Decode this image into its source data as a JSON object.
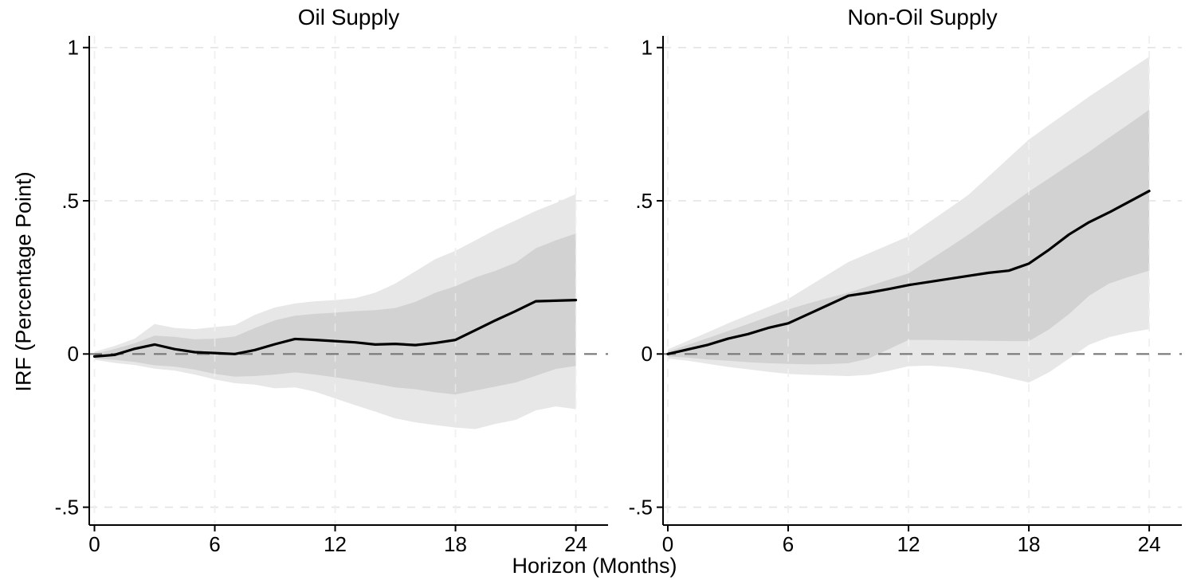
{
  "figure": {
    "y_axis_title": "IRF (Percentage Point)",
    "x_axis_title": "Horizon (Months)",
    "background": "#ffffff"
  },
  "axes": {
    "xlim": [
      0,
      24
    ],
    "ylim": [
      -0.5,
      1
    ],
    "x_ticks": [
      {
        "value": 0,
        "label": "0"
      },
      {
        "value": 6,
        "label": "6"
      },
      {
        "value": 12,
        "label": "12"
      },
      {
        "value": 18,
        "label": "18"
      },
      {
        "value": 24,
        "label": "24"
      }
    ],
    "y_ticks": [
      {
        "value": 1,
        "label": "1"
      },
      {
        "value": 0.5,
        "label": ".5"
      },
      {
        "value": 0,
        "label": "0"
      },
      {
        "value": -0.5,
        "label": "-.5"
      }
    ],
    "h_gridlines": [
      1,
      0.5,
      -0.5
    ],
    "zero_reference_line": 0,
    "grid_on": true
  },
  "style": {
    "irf_line_color": "#000000",
    "inner_band_color": "#d2d2d2",
    "outer_band_color": "#e7e7e7",
    "gridline_color": "#e3e3e3",
    "zero_line_color": "#787878",
    "axis_color": "#000000"
  },
  "chart_data": [
    {
      "type": "line",
      "title": "Oil Supply",
      "xlabel": "Horizon (Months)",
      "ylabel": "IRF (Percentage Point)",
      "legend_position": "none",
      "months": [
        0,
        1,
        2,
        3,
        4,
        5,
        6,
        7,
        8,
        9,
        10,
        11,
        12,
        13,
        14,
        15,
        16,
        17,
        18,
        19,
        20,
        21,
        22,
        23,
        24
      ],
      "irf": [
        -0.008,
        -0.003,
        0.017,
        0.031,
        0.016,
        0.006,
        0.003,
        0.0,
        0.013,
        0.032,
        0.049,
        0.046,
        0.042,
        0.038,
        0.031,
        0.033,
        0.029,
        0.036,
        0.046,
        0.078,
        0.11,
        0.14,
        0.172,
        0.174,
        0.176
      ],
      "inner_band": {
        "upper": [
          0.001,
          0.016,
          0.035,
          0.06,
          0.056,
          0.048,
          0.05,
          0.057,
          0.085,
          0.11,
          0.125,
          0.131,
          0.135,
          0.14,
          0.143,
          0.15,
          0.17,
          0.2,
          0.221,
          0.25,
          0.272,
          0.298,
          0.345,
          0.371,
          0.393
        ],
        "lower": [
          -0.015,
          -0.019,
          -0.026,
          -0.037,
          -0.041,
          -0.051,
          -0.065,
          -0.074,
          -0.072,
          -0.067,
          -0.06,
          -0.067,
          -0.076,
          -0.086,
          -0.097,
          -0.109,
          -0.115,
          -0.125,
          -0.132,
          -0.119,
          -0.106,
          -0.093,
          -0.071,
          -0.049,
          -0.039
        ]
      },
      "outer_band": {
        "upper": [
          0.007,
          0.026,
          0.05,
          0.098,
          0.085,
          0.081,
          0.088,
          0.094,
          0.128,
          0.152,
          0.165,
          0.172,
          0.176,
          0.182,
          0.2,
          0.23,
          0.27,
          0.31,
          0.337,
          0.371,
          0.406,
          0.436,
          0.467,
          0.493,
          0.522
        ],
        "lower": [
          -0.019,
          -0.029,
          -0.036,
          -0.048,
          -0.054,
          -0.067,
          -0.083,
          -0.095,
          -0.1,
          -0.112,
          -0.109,
          -0.123,
          -0.145,
          -0.167,
          -0.188,
          -0.21,
          -0.223,
          -0.232,
          -0.24,
          -0.245,
          -0.228,
          -0.215,
          -0.184,
          -0.171,
          -0.18
        ]
      }
    },
    {
      "type": "line",
      "title": "Non-Oil Supply",
      "xlabel": "Horizon (Months)",
      "ylabel": "IRF (Percentage Point)",
      "legend_position": "none",
      "months": [
        0,
        1,
        2,
        3,
        4,
        5,
        6,
        7,
        8,
        9,
        10,
        11,
        12,
        13,
        14,
        15,
        16,
        17,
        18,
        19,
        20,
        21,
        22,
        23,
        24
      ],
      "irf": [
        0.0,
        0.015,
        0.03,
        0.05,
        0.065,
        0.085,
        0.1,
        0.13,
        0.16,
        0.19,
        0.2,
        0.212,
        0.225,
        0.235,
        0.245,
        0.255,
        0.265,
        0.272,
        0.295,
        0.34,
        0.39,
        0.43,
        0.462,
        0.497,
        0.532
      ],
      "inner_band": {
        "upper": [
          0.008,
          0.03,
          0.052,
          0.075,
          0.098,
          0.122,
          0.145,
          0.165,
          0.183,
          0.2,
          0.221,
          0.242,
          0.263,
          0.305,
          0.347,
          0.39,
          0.437,
          0.483,
          0.53,
          0.573,
          0.617,
          0.66,
          0.706,
          0.751,
          0.797
        ],
        "lower": [
          -0.008,
          -0.012,
          -0.018,
          -0.022,
          -0.027,
          -0.03,
          -0.032,
          -0.034,
          -0.033,
          -0.03,
          -0.015,
          0.015,
          0.046,
          0.046,
          0.045,
          0.044,
          0.043,
          0.042,
          0.042,
          0.08,
          0.13,
          0.19,
          0.23,
          0.252,
          0.272
        ]
      },
      "outer_band": {
        "upper": [
          0.015,
          0.043,
          0.071,
          0.1,
          0.127,
          0.153,
          0.18,
          0.22,
          0.26,
          0.3,
          0.328,
          0.356,
          0.384,
          0.429,
          0.474,
          0.52,
          0.58,
          0.64,
          0.7,
          0.747,
          0.793,
          0.84,
          0.883,
          0.927,
          0.97
        ],
        "lower": [
          -0.015,
          -0.022,
          -0.032,
          -0.042,
          -0.05,
          -0.058,
          -0.065,
          -0.068,
          -0.07,
          -0.072,
          -0.068,
          -0.055,
          -0.04,
          -0.038,
          -0.042,
          -0.05,
          -0.062,
          -0.078,
          -0.093,
          -0.06,
          -0.015,
          0.03,
          0.055,
          0.07,
          0.081
        ]
      }
    }
  ]
}
